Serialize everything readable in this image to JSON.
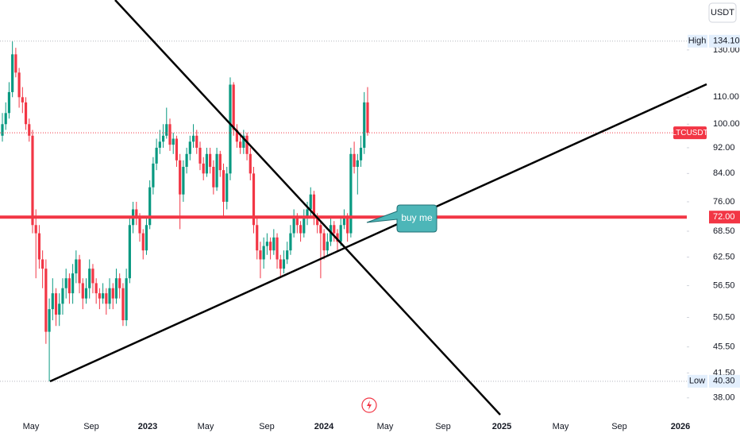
{
  "chart_data": {
    "type": "candlestick",
    "symbol": "LTCUSDT",
    "currency": "USDT",
    "log_scale": true,
    "ylim": [
      35.8,
      155.1
    ],
    "yticks": [
      {
        "value": 130,
        "label": "130.00"
      },
      {
        "value": 110,
        "label": "110.00"
      },
      {
        "value": 100,
        "label": "100.00"
      },
      {
        "value": 92,
        "label": "92.00"
      },
      {
        "value": 84,
        "label": "84.00"
      },
      {
        "value": 76,
        "label": "76.00"
      },
      {
        "value": 68.5,
        "label": "68.50"
      },
      {
        "value": 62.5,
        "label": "62.50"
      },
      {
        "value": 56.5,
        "label": "56.50"
      },
      {
        "value": 50.5,
        "label": "50.50"
      },
      {
        "value": 45.5,
        "label": "45.50"
      },
      {
        "value": 41.5,
        "label": "41.50"
      },
      {
        "value": 38,
        "label": "38.00"
      }
    ],
    "xlabels": [
      "May",
      "Sep",
      "2023",
      "May",
      "Sep",
      "2024",
      "May",
      "Sep",
      "2025",
      "May",
      "Sep",
      "2026"
    ],
    "up_color": "#089981",
    "down_color": "#f23645",
    "candles": [
      [
        96,
        104,
        94,
        100
      ],
      [
        100,
        108,
        98,
        104
      ],
      [
        104,
        116,
        102,
        112
      ],
      [
        112,
        134.1,
        110,
        128
      ],
      [
        128,
        131,
        118,
        120
      ],
      [
        120,
        122,
        106,
        110
      ],
      [
        110,
        114,
        104,
        108
      ],
      [
        108,
        110,
        98,
        100
      ],
      [
        100,
        102,
        94,
        96
      ],
      [
        96,
        98,
        68,
        70
      ],
      [
        70,
        74,
        58,
        68
      ],
      [
        68,
        70,
        60,
        62
      ],
      [
        62,
        64,
        56,
        60
      ],
      [
        60,
        62,
        46,
        48
      ],
      [
        48,
        54,
        40.3,
        52
      ],
      [
        52,
        58,
        50,
        55
      ],
      [
        55,
        56,
        49,
        51
      ],
      [
        51,
        55,
        49,
        53
      ],
      [
        53,
        58,
        51,
        56
      ],
      [
        56,
        60,
        54,
        58
      ],
      [
        58,
        59,
        53,
        55
      ],
      [
        55,
        61,
        53,
        59
      ],
      [
        59,
        64,
        57,
        62
      ],
      [
        62,
        63,
        55,
        57
      ],
      [
        57,
        58,
        52,
        54
      ],
      [
        54,
        58,
        53,
        56
      ],
      [
        56,
        62,
        54,
        60
      ],
      [
        60,
        61,
        55,
        57
      ],
      [
        57,
        58,
        53,
        55
      ],
      [
        55,
        56,
        52,
        54
      ],
      [
        54,
        57,
        53,
        55
      ],
      [
        55,
        56,
        51,
        53
      ],
      [
        53,
        58,
        52,
        56
      ],
      [
        56,
        57,
        52,
        54
      ],
      [
        54,
        60,
        53,
        58
      ],
      [
        58,
        59,
        54,
        56
      ],
      [
        56,
        57,
        49,
        50
      ],
      [
        50,
        60,
        49,
        58
      ],
      [
        58,
        72,
        57,
        70
      ],
      [
        70,
        76,
        68,
        74
      ],
      [
        74,
        76,
        70,
        72
      ],
      [
        72,
        73,
        66,
        68
      ],
      [
        68,
        69,
        62,
        64
      ],
      [
        64,
        72,
        63,
        70
      ],
      [
        70,
        82,
        69,
        80
      ],
      [
        80,
        89,
        78,
        87
      ],
      [
        87,
        95,
        85,
        92
      ],
      [
        92,
        98,
        90,
        94
      ],
      [
        94,
        100,
        92,
        96
      ],
      [
        96,
        106,
        95,
        100
      ],
      [
        100,
        102,
        91,
        93
      ],
      [
        93,
        97,
        90,
        95
      ],
      [
        95,
        96,
        86,
        88
      ],
      [
        88,
        90,
        69,
        78
      ],
      [
        78,
        88,
        76,
        86
      ],
      [
        86,
        92,
        84,
        90
      ],
      [
        90,
        96,
        88,
        94
      ],
      [
        94,
        100,
        92,
        96
      ],
      [
        96,
        98,
        90,
        92
      ],
      [
        92,
        94,
        85,
        87
      ],
      [
        87,
        89,
        82,
        84
      ],
      [
        84,
        92,
        83,
        90
      ],
      [
        90,
        92,
        84,
        86
      ],
      [
        86,
        88,
        78,
        80
      ],
      [
        80,
        92,
        79,
        90
      ],
      [
        90,
        91,
        83,
        85
      ],
      [
        85,
        87,
        72,
        76
      ],
      [
        76,
        86,
        74,
        84
      ],
      [
        84,
        118,
        82,
        115
      ],
      [
        115,
        116,
        96,
        98
      ],
      [
        98,
        100,
        92,
        94
      ],
      [
        94,
        96,
        90,
        92
      ],
      [
        92,
        98,
        90,
        96
      ],
      [
        96,
        97,
        88,
        90
      ],
      [
        90,
        92,
        82,
        84
      ],
      [
        84,
        86,
        68,
        70
      ],
      [
        70,
        72,
        62,
        64
      ],
      [
        64,
        66,
        58,
        62
      ],
      [
        62,
        67,
        60,
        65
      ],
      [
        65,
        68,
        63,
        66
      ],
      [
        66,
        67,
        62,
        64
      ],
      [
        64,
        69,
        63,
        67
      ],
      [
        67,
        68,
        60,
        62
      ],
      [
        62,
        63,
        58,
        60
      ],
      [
        60,
        64,
        59,
        62
      ],
      [
        62,
        66,
        61,
        64
      ],
      [
        64,
        70,
        63,
        68
      ],
      [
        68,
        74,
        67,
        72
      ],
      [
        72,
        73,
        68,
        70
      ],
      [
        70,
        71,
        66,
        68
      ],
      [
        68,
        74,
        67,
        72
      ],
      [
        72,
        76,
        70,
        74
      ],
      [
        74,
        80,
        72,
        78
      ],
      [
        78,
        79,
        70,
        72
      ],
      [
        72,
        73,
        68,
        70
      ],
      [
        70,
        71,
        58,
        68
      ],
      [
        68,
        69,
        62,
        64
      ],
      [
        64,
        68,
        63,
        66
      ],
      [
        66,
        72,
        65,
        70
      ],
      [
        70,
        71,
        66,
        68
      ],
      [
        68,
        69,
        64,
        66
      ],
      [
        66,
        72,
        65,
        70
      ],
      [
        70,
        74,
        69,
        72
      ],
      [
        72,
        73,
        66,
        68
      ],
      [
        68,
        92,
        67,
        90
      ],
      [
        90,
        94,
        84,
        86
      ],
      [
        86,
        90,
        78,
        88
      ],
      [
        88,
        96,
        86,
        92
      ],
      [
        92,
        112,
        90,
        108
      ],
      [
        108,
        114,
        96,
        97
      ]
    ],
    "high": {
      "label": "High",
      "value": 134.1,
      "value_label": "134.10"
    },
    "low": {
      "label": "Low",
      "value": 40.3,
      "value_label": "40.30"
    },
    "last_price": 97,
    "horizontal_line": {
      "value": 72,
      "value_label": "72.00",
      "color": "#f23645"
    },
    "annotation": "buy me"
  }
}
